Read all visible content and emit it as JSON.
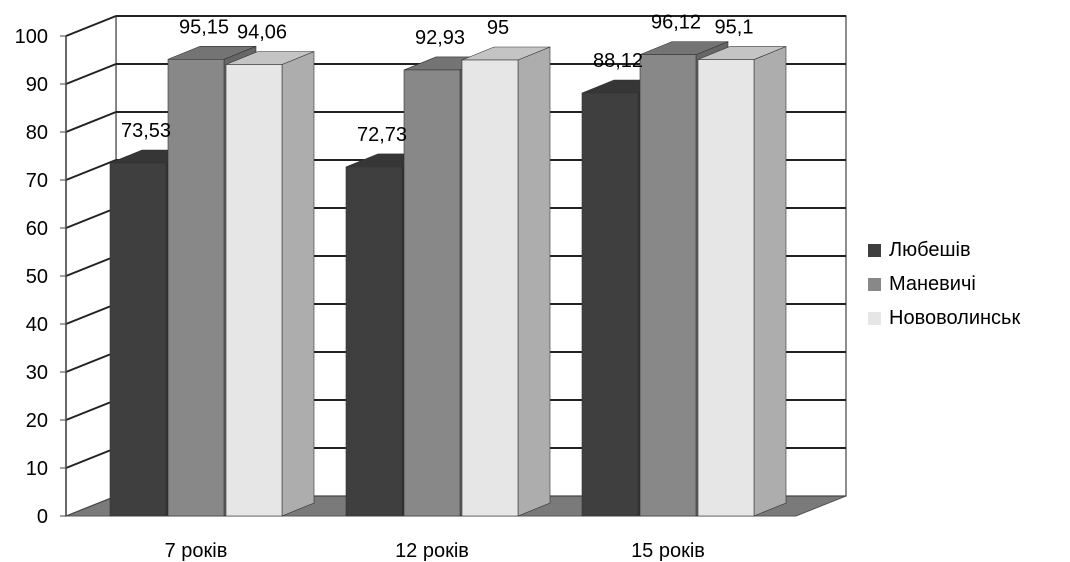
{
  "chart_data": {
    "type": "bar",
    "categories": [
      "7 років",
      "12 років",
      "15 років"
    ],
    "series": [
      {
        "name": "Любешів",
        "values": [
          73.53,
          72.73,
          88.12
        ],
        "labels": [
          "73,53",
          "72,73",
          "88,12"
        ],
        "color": "#3f3f3f"
      },
      {
        "name": "Маневичі",
        "values": [
          95.15,
          92.93,
          96.12
        ],
        "labels": [
          "95,15",
          "92,93",
          "96,12"
        ],
        "color": "#888888"
      },
      {
        "name": "Нововолинськ",
        "values": [
          94.06,
          95.0,
          95.1
        ],
        "labels": [
          "94,06",
          "95",
          "95,1"
        ],
        "color": "#e6e6e6"
      }
    ],
    "yticks": [
      "0",
      "10",
      "20",
      "30",
      "40",
      "50",
      "60",
      "70",
      "80",
      "90",
      "100"
    ],
    "ylim": [
      0,
      100
    ],
    "grid": true,
    "legend_position": "right",
    "style": "3d"
  }
}
